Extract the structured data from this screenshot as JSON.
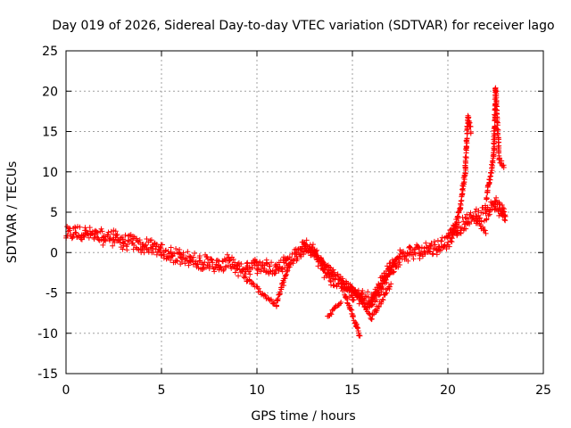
{
  "chart_data": {
    "type": "scatter",
    "title": "Day 019 of 2026, Sidereal Day-to-day VTEC variation (SDTVAR) for receiver lago",
    "xlabel": "GPS time / hours",
    "ylabel": "SDTVAR / TECUs",
    "xlim": [
      0,
      25
    ],
    "ylim": [
      -15,
      25
    ],
    "xticks": [
      0,
      5,
      10,
      15,
      20,
      25
    ],
    "yticks": [
      -15,
      -10,
      -5,
      0,
      5,
      10,
      15,
      20,
      25
    ],
    "grid": true,
    "marker": "+",
    "color": "#ff0000",
    "series": [
      {
        "name": "SDTVAR",
        "trend": [
          [
            0.0,
            2.2
          ],
          [
            0.5,
            2.5
          ],
          [
            1.0,
            2.4
          ],
          [
            1.5,
            2.0
          ],
          [
            2.0,
            1.9
          ],
          [
            2.5,
            1.8
          ],
          [
            3.0,
            1.3
          ],
          [
            3.5,
            1.2
          ],
          [
            4.0,
            0.8
          ],
          [
            4.5,
            0.6
          ],
          [
            5.0,
            0.3
          ],
          [
            5.5,
            -0.2
          ],
          [
            6.0,
            -0.6
          ],
          [
            6.5,
            -0.9
          ],
          [
            7.0,
            -1.0
          ],
          [
            7.5,
            -1.4
          ],
          [
            8.0,
            -1.8
          ],
          [
            8.5,
            -1.2
          ],
          [
            9.0,
            -2.0
          ],
          [
            9.5,
            -1.8
          ],
          [
            10.0,
            -1.6
          ],
          [
            10.5,
            -1.8
          ],
          [
            11.0,
            -2.0
          ],
          [
            11.5,
            -1.2
          ],
          [
            12.0,
            -0.5
          ],
          [
            12.5,
            0.8
          ],
          [
            13.0,
            0.0
          ],
          [
            13.5,
            -2.0
          ],
          [
            14.0,
            -3.5
          ],
          [
            14.5,
            -4.0
          ],
          [
            15.0,
            -5.0
          ],
          [
            15.5,
            -5.5
          ],
          [
            16.0,
            -6.0
          ],
          [
            16.5,
            -4.0
          ],
          [
            17.0,
            -2.0
          ],
          [
            17.5,
            -0.5
          ],
          [
            18.0,
            0.0
          ],
          [
            18.5,
            0.2
          ],
          [
            19.0,
            0.4
          ],
          [
            19.5,
            0.8
          ],
          [
            20.0,
            1.5
          ],
          [
            20.5,
            3.0
          ],
          [
            21.0,
            3.8
          ],
          [
            21.5,
            4.5
          ],
          [
            22.0,
            5.0
          ],
          [
            22.5,
            6.0
          ],
          [
            23.0,
            4.5
          ]
        ],
        "bands": [
          [
            [
              9.3,
              -3.0
            ],
            [
              11.0,
              -6.5
            ]
          ],
          [
            [
              11.0,
              -6.5
            ],
            [
              11.7,
              -1.5
            ]
          ],
          [
            [
              13.7,
              -8.0
            ],
            [
              14.4,
              -6.0
            ]
          ],
          [
            [
              14.6,
              -5.0
            ],
            [
              15.4,
              -10.5
            ]
          ],
          [
            [
              12.4,
              1.0
            ],
            [
              14.5,
              -3.5
            ]
          ],
          [
            [
              14.5,
              -3.5
            ],
            [
              15.6,
              -6.0
            ]
          ],
          [
            [
              15.0,
              -4.5
            ],
            [
              16.0,
              -8.0
            ]
          ],
          [
            [
              16.0,
              -8.0
            ],
            [
              17.0,
              -4.0
            ]
          ],
          [
            [
              15.7,
              -7.0
            ],
            [
              17.3,
              -1.0
            ]
          ],
          [
            [
              20.2,
              2.0
            ],
            [
              20.6,
              5.0
            ]
          ],
          [
            [
              20.6,
              5.0
            ],
            [
              20.9,
              10.0
            ]
          ],
          [
            [
              20.9,
              10.0
            ],
            [
              21.05,
              16.8
            ]
          ],
          [
            [
              21.05,
              16.8
            ],
            [
              21.2,
              15.0
            ]
          ],
          [
            [
              21.5,
              4.0
            ],
            [
              22.0,
              2.5
            ]
          ],
          [
            [
              22.0,
              6.5
            ],
            [
              22.4,
              12.0
            ]
          ],
          [
            [
              22.4,
              12.0
            ],
            [
              22.5,
              20.3
            ]
          ],
          [
            [
              22.5,
              20.3
            ],
            [
              22.7,
              11.5
            ]
          ],
          [
            [
              22.7,
              11.5
            ],
            [
              22.95,
              10.5
            ]
          ],
          [
            [
              22.8,
              5.0
            ],
            [
              23.0,
              4.0
            ]
          ]
        ]
      }
    ]
  }
}
